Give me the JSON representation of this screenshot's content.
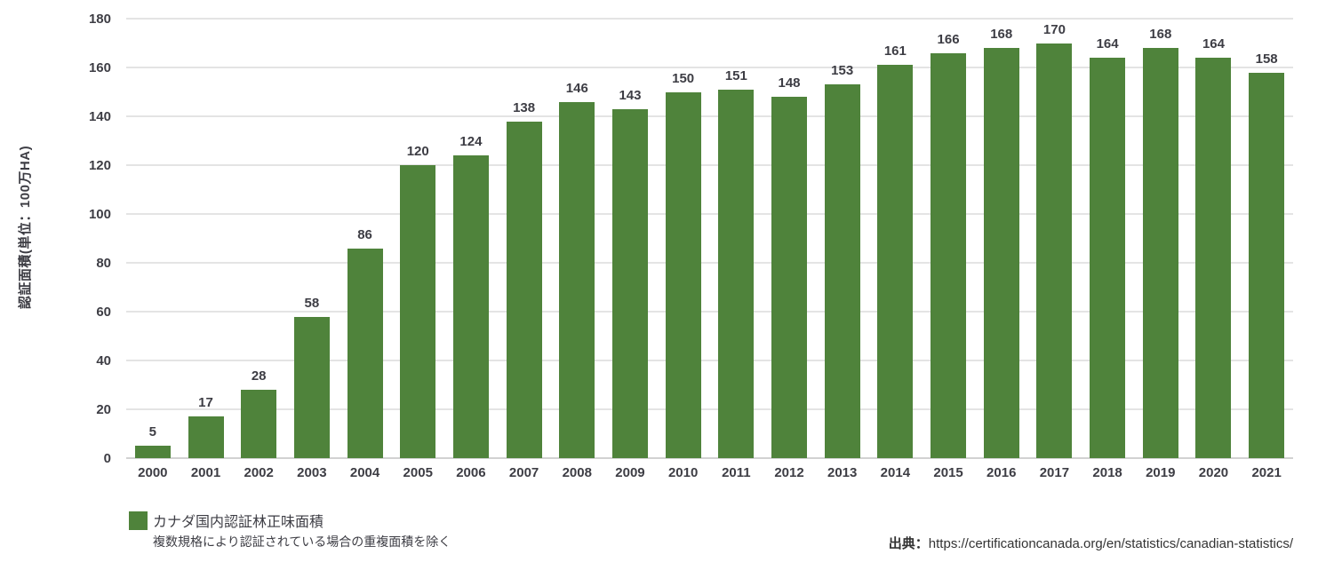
{
  "chart_data": {
    "type": "bar",
    "categories": [
      "2000",
      "2001",
      "2002",
      "2003",
      "2004",
      "2005",
      "2006",
      "2007",
      "2008",
      "2009",
      "2010",
      "2011",
      "2012",
      "2013",
      "2014",
      "2015",
      "2016",
      "2017",
      "2018",
      "2019",
      "2020",
      "2021"
    ],
    "values": [
      5,
      17,
      28,
      58,
      86,
      120,
      124,
      138,
      146,
      143,
      150,
      151,
      148,
      153,
      161,
      166,
      168,
      170,
      164,
      168,
      164,
      158
    ],
    "title": "",
    "xlabel": "",
    "ylabel": "認証面積(単位：100万HA)",
    "ylim": [
      0,
      180
    ],
    "y_tick_step": 20,
    "y_ticks": [
      0,
      20,
      40,
      60,
      80,
      100,
      120,
      140,
      160,
      180
    ],
    "grid": true,
    "value_labels_shown": true,
    "legend_position": "bottom-left",
    "series_name": "カナダ国内認証林正味面積"
  },
  "axes": {
    "y_title": "認証面積(単位：100万HA)"
  },
  "legend": {
    "series_label": "カナダ国内認証林正味面積",
    "note": "複数規格により認証されている場合の重複面積を除く"
  },
  "source": {
    "prefix": "出典：",
    "url": "https://certificationcanada.org/en/statistics/canadian-statistics/"
  },
  "colors": {
    "bar": "#4f833b",
    "text": "#3d3d44",
    "gridline": "#e4e4e4",
    "baseline": "#d2d2d2",
    "background": "#ffffff"
  }
}
